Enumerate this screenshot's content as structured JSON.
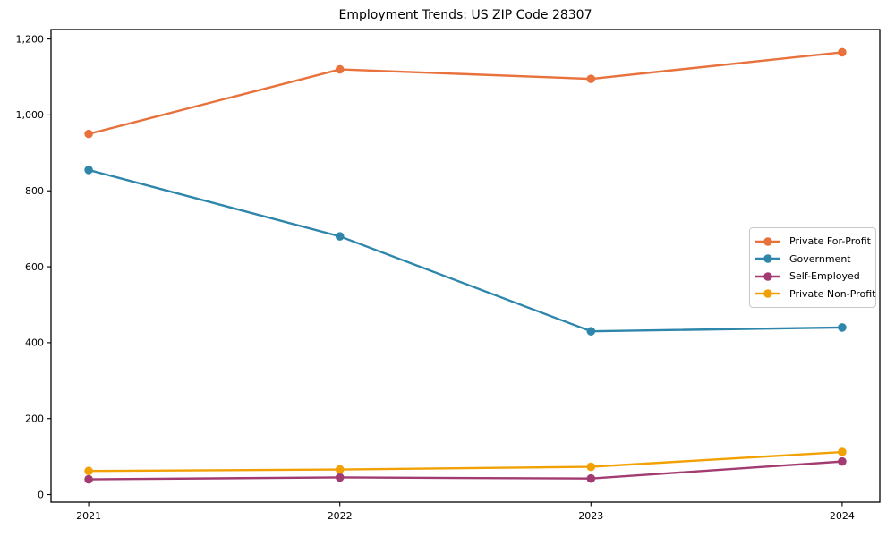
{
  "page": {
    "background_color": "#ffffff",
    "axis_color": "#000000"
  },
  "chart_data": {
    "type": "line",
    "title": "Employment Trends: US ZIP Code 28307",
    "xlabel": "",
    "ylabel": "",
    "x": [
      2021,
      2022,
      2023,
      2024
    ],
    "x_tick_labels": [
      "2021",
      "2022",
      "2023",
      "2024"
    ],
    "y_ticks": [
      0,
      200,
      400,
      600,
      800,
      1000,
      1200
    ],
    "y_tick_labels": [
      "0",
      "200",
      "400",
      "600",
      "800",
      "1,000",
      "1,200"
    ],
    "xlim": [
      2020.85,
      2024.15
    ],
    "ylim": [
      -20,
      1225
    ],
    "grid": false,
    "legend_position": "center right",
    "marker": "circle",
    "series": [
      {
        "name": "Private For-Profit",
        "color": "#E8713C",
        "values": [
          950,
          1120,
          1095,
          1165
        ]
      },
      {
        "name": "Government",
        "color": "#2E86AB",
        "values": [
          855,
          680,
          430,
          440
        ]
      },
      {
        "name": "Self-Employed",
        "color": "#A23B72",
        "values": [
          40,
          45,
          42,
          87
        ]
      },
      {
        "name": "Private Non-Profit",
        "color": "#F2A104",
        "values": [
          62,
          66,
          73,
          112
        ]
      }
    ]
  }
}
